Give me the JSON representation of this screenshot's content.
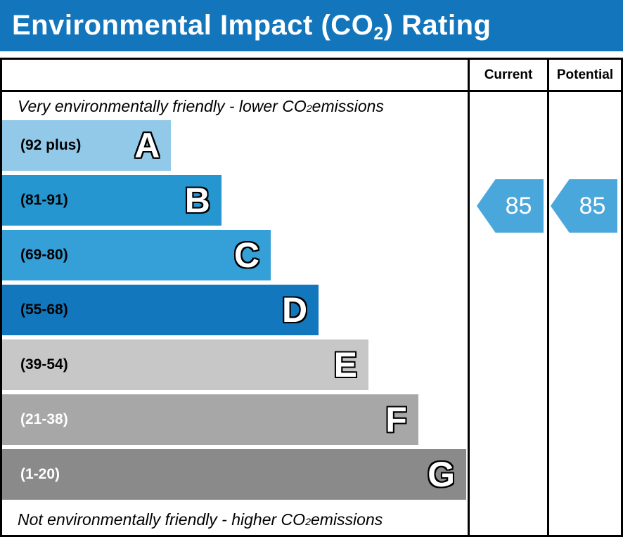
{
  "title": {
    "prefix": "Environmental Impact (CO",
    "subscript": "2",
    "suffix": ") Rating"
  },
  "header": {
    "current": "Current",
    "potential": "Potential"
  },
  "notes": {
    "top": {
      "prefix": "Very environmentally friendly - lower CO",
      "subscript": "2",
      "suffix": " emissions"
    },
    "bottom": {
      "prefix": "Not environmentally friendly - higher CO",
      "subscript": "2",
      "suffix": " emissions"
    }
  },
  "bands": [
    {
      "letter": "A",
      "range_label": "(92 plus)",
      "color": "#92c9e9",
      "width_pct": 36.3,
      "label_color": "#000000"
    },
    {
      "letter": "B",
      "range_label": "(81-91)",
      "color": "#2596cf",
      "width_pct": 47.1,
      "label_color": "#000000"
    },
    {
      "letter": "C",
      "range_label": "(69-80)",
      "color": "#35a0d7",
      "width_pct": 57.7,
      "label_color": "#000000"
    },
    {
      "letter": "D",
      "range_label": "(55-68)",
      "color": "#1377bd",
      "width_pct": 68.0,
      "label_color": "#000000"
    },
    {
      "letter": "E",
      "range_label": "(39-54)",
      "color": "#c7c7c7",
      "width_pct": 78.7,
      "label_color": "#000000"
    },
    {
      "letter": "F",
      "range_label": "(21-38)",
      "color": "#a7a7a7",
      "width_pct": 89.4,
      "label_color": "#ffffff"
    },
    {
      "letter": "G",
      "range_label": "(1-20)",
      "color": "#8a8a8a",
      "width_pct": 99.7,
      "label_color": "#ffffff"
    }
  ],
  "ratings": {
    "current": {
      "value": "85",
      "band": "B",
      "color": "#4aa7db"
    },
    "potential": {
      "value": "85",
      "band": "B",
      "color": "#4aa7db"
    }
  },
  "colors": {
    "title_bar": "#1375bc",
    "border": "#000000",
    "arrow": "#4aa7db"
  },
  "chart_data": {
    "type": "bar",
    "orientation": "horizontal",
    "title": "Environmental Impact (CO2) Rating",
    "categories": [
      "A",
      "B",
      "C",
      "D",
      "E",
      "F",
      "G"
    ],
    "band_ranges": [
      "92 plus",
      "81-91",
      "69-80",
      "55-68",
      "39-54",
      "21-38",
      "1-20"
    ],
    "bar_lengths_pct": [
      36.3,
      47.1,
      57.7,
      68.0,
      78.7,
      89.4,
      99.7
    ],
    "bar_colors": [
      "#92c9e9",
      "#2596cf",
      "#35a0d7",
      "#1377bd",
      "#c7c7c7",
      "#a7a7a7",
      "#8a8a8a"
    ],
    "value_columns": [
      "Current",
      "Potential"
    ],
    "current": {
      "value": 85,
      "band": "B"
    },
    "potential": {
      "value": 85,
      "band": "B"
    },
    "top_annotation": "Very environmentally friendly - lower CO2 emissions",
    "bottom_annotation": "Not environmentally friendly - higher CO2 emissions",
    "legend_position": "none",
    "grid": false
  }
}
